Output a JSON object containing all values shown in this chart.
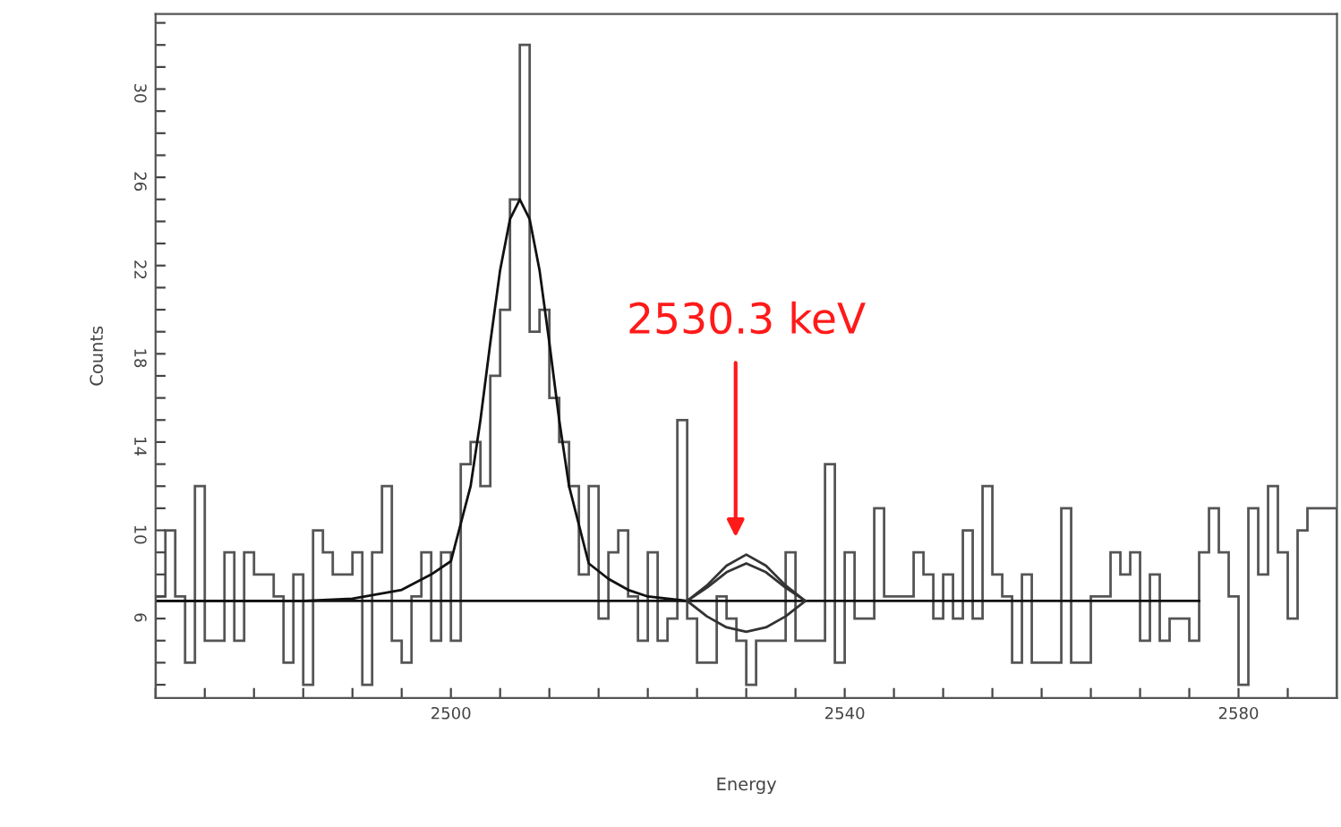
{
  "chart_data": {
    "type": "histogram",
    "xlabel": "Energy",
    "ylabel": "Counts",
    "bins": [
      2470,
      2471,
      2472,
      2473,
      2474,
      2475,
      2476,
      2477,
      2478,
      2479,
      2480,
      2481,
      2482,
      2483,
      2484,
      2485,
      2486,
      2487,
      2488,
      2489,
      2490,
      2491,
      2492,
      2493,
      2494,
      2495,
      2496,
      2497,
      2498,
      2499,
      2500,
      2501,
      2502,
      2503,
      2504,
      2505,
      2506,
      2507,
      2508,
      2509,
      2510,
      2511,
      2512,
      2513,
      2514,
      2515,
      2516,
      2517,
      2518,
      2519,
      2520,
      2521,
      2522,
      2523,
      2524,
      2525,
      2526,
      2527,
      2528,
      2529,
      2530,
      2531,
      2532,
      2533,
      2534,
      2535,
      2536,
      2537,
      2538,
      2539,
      2540,
      2541,
      2542,
      2543,
      2544,
      2545,
      2546,
      2547,
      2548,
      2549,
      2550,
      2551,
      2552,
      2553,
      2554,
      2555,
      2556,
      2557,
      2558,
      2559,
      2560,
      2561,
      2562,
      2563,
      2564,
      2565,
      2566,
      2567,
      2568,
      2569,
      2570,
      2571,
      2572,
      2573,
      2574,
      2575,
      2576,
      2577,
      2578,
      2579,
      2580,
      2581,
      2582,
      2583,
      2584,
      2585,
      2586,
      2587,
      2588,
      2589,
      2590
    ],
    "values": [
      7,
      10,
      7,
      4,
      12,
      5,
      5,
      9,
      5,
      9,
      8,
      8,
      7,
      4,
      8,
      3,
      10,
      9,
      8,
      8,
      9,
      3,
      9,
      12,
      5,
      4,
      7,
      9,
      5,
      9,
      5,
      13,
      14,
      12,
      17,
      20,
      25,
      32,
      19,
      20,
      16,
      14,
      12,
      8,
      12,
      6,
      9,
      10,
      7,
      5,
      9,
      5,
      6,
      15,
      6,
      4,
      4,
      7,
      6,
      5,
      3,
      5,
      5,
      5,
      9,
      5,
      5,
      5,
      13,
      4,
      9,
      6,
      6,
      11,
      7,
      7,
      7,
      9,
      8,
      6,
      8,
      6,
      10,
      6,
      12,
      8,
      7,
      4,
      8,
      4,
      4,
      4,
      11,
      4,
      4,
      7,
      7,
      9,
      8,
      9,
      5,
      8,
      5,
      6,
      6,
      5,
      9,
      11,
      9,
      7,
      3,
      11,
      8,
      12,
      9,
      6,
      10,
      11,
      11,
      11
    ],
    "color": "#555555",
    "series": [
      {
        "type": "line",
        "color": "#111111",
        "x": [
          2470,
          2485,
          2490,
          2495,
          2498,
          2500,
          2502,
          2503,
          2504,
          2505,
          2506,
          2507,
          2508,
          2509,
          2510,
          2511,
          2512,
          2514,
          2516,
          2518,
          2520,
          2524
        ],
        "values": [
          6.8,
          6.8,
          6.9,
          7.3,
          8.0,
          8.6,
          12.0,
          15.0,
          18.5,
          21.8,
          24.1,
          25.0,
          24.1,
          21.8,
          18.5,
          15.0,
          12.0,
          8.5,
          7.8,
          7.3,
          7.0,
          6.8
        ]
      },
      {
        "type": "line",
        "color": "#111111",
        "x": [
          2470,
          2576
        ],
        "values": [
          6.8,
          6.8
        ]
      },
      {
        "type": "line",
        "color": "#333333",
        "x": [
          2524,
          2526,
          2528,
          2530,
          2532,
          2534,
          2536
        ],
        "values": [
          6.8,
          7.5,
          8.4,
          8.9,
          8.4,
          7.5,
          6.8
        ]
      },
      {
        "type": "line",
        "color": "#333333",
        "x": [
          2524,
          2526,
          2528,
          2530,
          2532,
          2534,
          2536
        ],
        "values": [
          6.8,
          7.4,
          8.1,
          8.5,
          8.1,
          7.4,
          6.8
        ]
      },
      {
        "type": "line",
        "color": "#333333",
        "x": [
          2524,
          2526,
          2528,
          2530,
          2532,
          2534,
          2536
        ],
        "values": [
          6.8,
          6.1,
          5.6,
          5.4,
          5.6,
          6.1,
          6.8
        ]
      }
    ],
    "annotations": [
      "2530.3 keV"
    ],
    "xlim": [
      2470,
      2590
    ],
    "ylim": [
      2.4,
      33.4
    ],
    "xticks": [
      {
        "value": 2470,
        "label": null
      },
      {
        "value": 2475,
        "label": null
      },
      {
        "value": 2480,
        "label": null
      },
      {
        "value": 2485,
        "label": null
      },
      {
        "value": 2490,
        "label": null
      },
      {
        "value": 2495,
        "label": null
      },
      2500,
      {
        "value": 2505,
        "label": null
      },
      {
        "value": 2510,
        "label": null
      },
      {
        "value": 2515,
        "label": null
      },
      {
        "value": 2520,
        "label": null
      },
      {
        "value": 2525,
        "label": null
      },
      {
        "value": 2530,
        "label": null
      },
      {
        "value": 2535,
        "label": null
      },
      2540,
      {
        "value": 2545,
        "label": null
      },
      {
        "value": 2550,
        "label": null
      },
      {
        "value": 2555,
        "label": null
      },
      {
        "value": 2560,
        "label": null
      },
      {
        "value": 2565,
        "label": null
      },
      {
        "value": 2570,
        "label": null
      },
      {
        "value": 2575,
        "label": null
      },
      2580,
      {
        "value": 2585,
        "label": null
      }
    ],
    "yticks": [
      {
        "value": 3,
        "label": null
      },
      {
        "value": 4,
        "label": null
      },
      {
        "value": 5,
        "label": null
      },
      6,
      {
        "value": 7,
        "label": null
      },
      {
        "value": 8,
        "label": null
      },
      {
        "value": 9,
        "label": null
      },
      10,
      {
        "value": 11,
        "label": null
      },
      {
        "value": 12,
        "label": null
      },
      {
        "value": 13,
        "label": null
      },
      14,
      {
        "value": 15,
        "label": null
      },
      {
        "value": 16,
        "label": null
      },
      {
        "value": 17,
        "label": null
      },
      18,
      {
        "value": 19,
        "label": null
      },
      {
        "value": 20,
        "label": null
      },
      {
        "value": 21,
        "label": null
      },
      22,
      {
        "value": 23,
        "label": null
      },
      {
        "value": 24,
        "label": null
      },
      {
        "value": 25,
        "label": null
      },
      26,
      {
        "value": 27,
        "label": null
      },
      {
        "value": 28,
        "label": null
      },
      {
        "value": 29,
        "label": null
      },
      30,
      {
        "value": 31,
        "label": null
      },
      {
        "value": 32,
        "label": null
      },
      {
        "value": 33,
        "label": null
      }
    ],
    "grid": false,
    "legend": false
  }
}
